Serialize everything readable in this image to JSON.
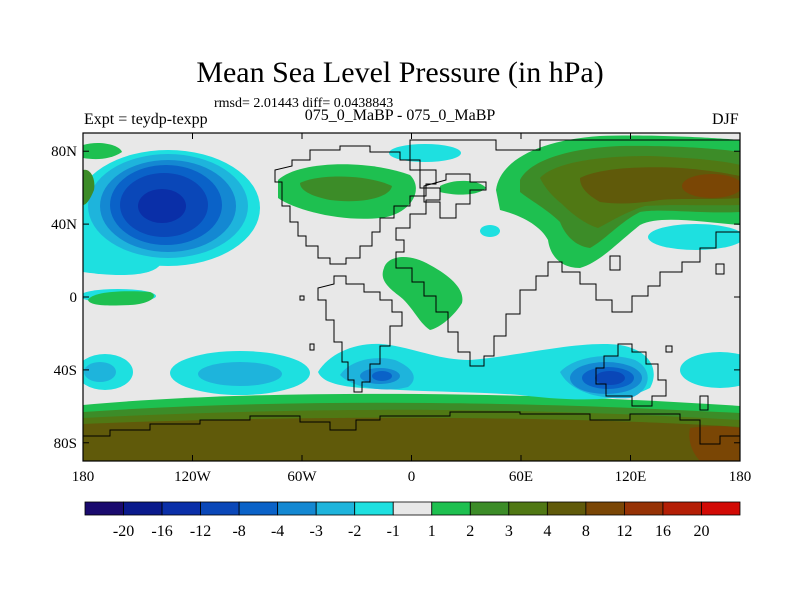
{
  "figure": {
    "title": "Mean Sea Level Pressure (in hPa)",
    "stats": "rmsd= 2.01443 diff= 0.0438843",
    "experiment": "Expt = teydp-texpp",
    "subtitle": "075_0_MaBP - 075_0_MaBP",
    "season": "DJF"
  },
  "map": {
    "lon_range": [
      -180,
      180
    ],
    "lat_range": [
      -90,
      90
    ],
    "y_ticks": [
      {
        "lat": 80,
        "label": "80N"
      },
      {
        "lat": 40,
        "label": "40N"
      },
      {
        "lat": 0,
        "label": "0"
      },
      {
        "lat": -40,
        "label": "40S"
      },
      {
        "lat": -80,
        "label": "80S"
      }
    ],
    "x_ticks": [
      {
        "lon": -180,
        "label": "180"
      },
      {
        "lon": -120,
        "label": "120W"
      },
      {
        "lon": -60,
        "label": "60W"
      },
      {
        "lon": 0,
        "label": "0"
      },
      {
        "lon": 60,
        "label": "60E"
      },
      {
        "lon": 120,
        "label": "120E"
      },
      {
        "lon": 180,
        "label": "180"
      }
    ]
  },
  "colorbar": {
    "colors": [
      "#1a0a6e",
      "#0a1a8c",
      "#0a2fa8",
      "#0a47b8",
      "#0a62c8",
      "#1488d2",
      "#1eb4dc",
      "#1ee0e0",
      "#e8e8e8",
      "#1ec050",
      "#3c8c28",
      "#507814",
      "#605a0a",
      "#7a4605",
      "#963205",
      "#b41e05",
      "#d20a05"
    ],
    "labels": [
      "-20",
      "-16",
      "-12",
      "-8",
      "-4",
      "-3",
      "-2",
      "-1",
      "1",
      "2",
      "3",
      "4",
      "8",
      "12",
      "16",
      "20"
    ]
  },
  "colors": {
    "background": "#e8e8e8",
    "land_outline": "#000000"
  }
}
